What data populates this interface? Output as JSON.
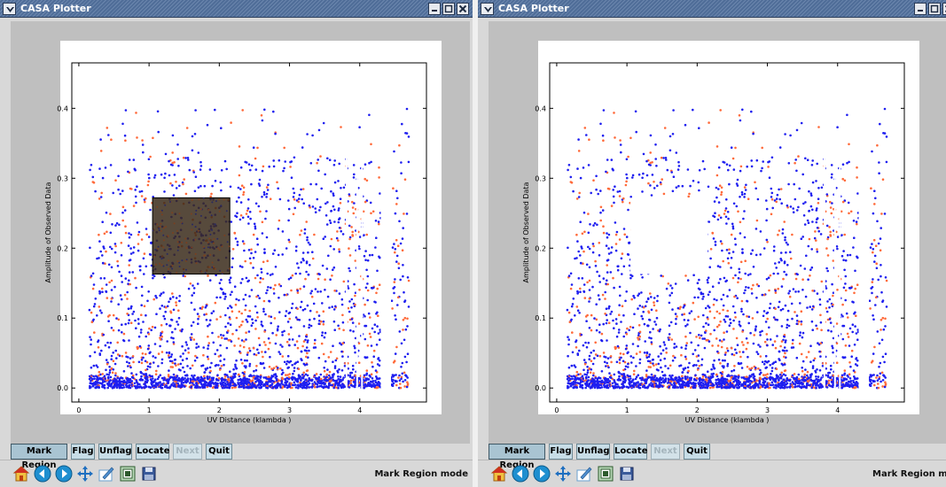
{
  "windows": [
    {
      "title": "CASA Plotter",
      "buttons": [
        "Mark Region",
        "Flag",
        "Unflag",
        "Locate",
        "Next",
        "Quit"
      ],
      "pressed_button": "Mark Region",
      "disabled_button": "Next",
      "mode_text": "Mark Region mode",
      "region_state": "marked"
    },
    {
      "title": "CASA Plotter",
      "buttons": [
        "Mark Region",
        "Flag",
        "Unflag",
        "Locate",
        "Next",
        "Quit"
      ],
      "pressed_button": "Mark Region",
      "disabled_button": "Next",
      "mode_text": "Mark Region mode",
      "region_state": "flagged"
    }
  ],
  "toolbar_icons": [
    "home-icon",
    "back-arrow-icon",
    "forward-arrow-icon",
    "pan-icon",
    "subplot-config-icon",
    "print-icon",
    "save-icon"
  ],
  "colors": {
    "titlebar": "#5873a0",
    "series_blue": "#1f1ff0",
    "series_orange": "#ff6a3a",
    "region_fill": "#4a3020",
    "button_face": "#c7dde7"
  },
  "chart_data": [
    {
      "type": "scatter",
      "title": "",
      "xlabel": "UV Distance (klambda )",
      "ylabel": "Amplitude of Observed Data",
      "xlim": [
        -0.1,
        4.95
      ],
      "ylim": [
        -0.02,
        0.465
      ],
      "xticks": [
        "0",
        "1",
        "2",
        "3",
        "4"
      ],
      "xtick_values": [
        0,
        1,
        2,
        3,
        4
      ],
      "yticks": [
        "0.0",
        "0.1",
        "0.2",
        "0.3",
        "0.4"
      ],
      "ytick_values": [
        0.0,
        0.1,
        0.2,
        0.3,
        0.4
      ],
      "series": [
        {
          "color": "#1f1ff0",
          "x_range": [
            0.15,
            4.3
          ],
          "y_range": [
            0.0,
            0.35
          ],
          "gap_x": [
            4.3,
            4.45
          ],
          "extra_x": [
            4.45,
            4.7
          ]
        },
        {
          "color": "#ff6a3a",
          "x_range": [
            0.15,
            4.3
          ],
          "y_range": [
            0.0,
            0.37
          ],
          "gap_x": [
            4.3,
            4.45
          ],
          "extra_x": [
            4.45,
            4.7
          ]
        }
      ],
      "marked_region": {
        "x": [
          1.05,
          2.15
        ],
        "y": [
          0.163,
          0.272
        ],
        "state": "marked"
      }
    },
    {
      "type": "scatter",
      "title": "",
      "xlabel": "UV Distance (klambda )",
      "ylabel": "Amplitude of Observed Data",
      "xlim": [
        -0.1,
        4.95
      ],
      "ylim": [
        -0.02,
        0.465
      ],
      "xticks": [
        "0",
        "1",
        "2",
        "3",
        "4"
      ],
      "xtick_values": [
        0,
        1,
        2,
        3,
        4
      ],
      "yticks": [
        "0.0",
        "0.1",
        "0.2",
        "0.3",
        "0.4"
      ],
      "ytick_values": [
        0.0,
        0.1,
        0.2,
        0.3,
        0.4
      ],
      "series": [
        {
          "color": "#1f1ff0",
          "x_range": [
            0.15,
            4.3
          ],
          "y_range": [
            0.0,
            0.35
          ],
          "gap_x": [
            4.3,
            4.45
          ],
          "extra_x": [
            4.45,
            4.7
          ]
        },
        {
          "color": "#ff6a3a",
          "x_range": [
            0.15,
            4.3
          ],
          "y_range": [
            0.0,
            0.37
          ],
          "gap_x": [
            4.3,
            4.45
          ],
          "extra_x": [
            4.45,
            4.7
          ]
        }
      ],
      "marked_region": {
        "x": [
          1.05,
          2.15
        ],
        "y": [
          0.163,
          0.272
        ],
        "state": "flagged"
      }
    }
  ]
}
